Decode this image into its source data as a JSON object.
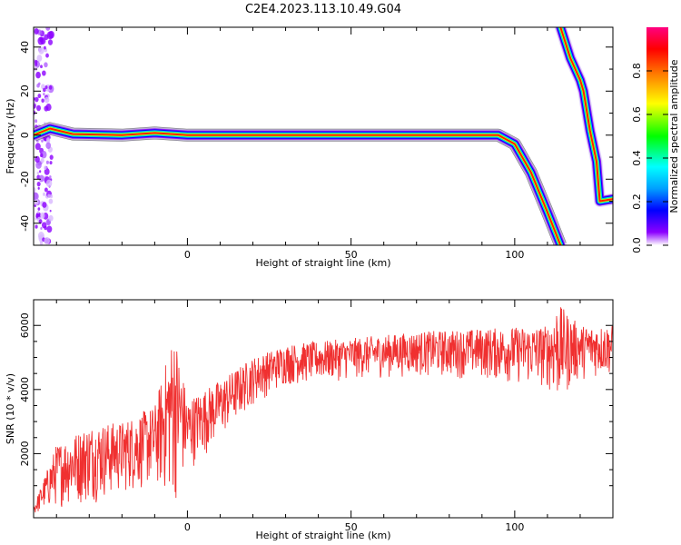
{
  "title": "C2E4.2023.113.10.49.G04",
  "chart_data": [
    {
      "type": "heatmap",
      "xlabel": "Height of straight line (km)",
      "ylabel": "Frequency (Hz)",
      "xlim": [
        -47,
        130
      ],
      "ylim": [
        -50,
        49
      ],
      "xticks": [
        0,
        50,
        100
      ],
      "yticks": [
        -40,
        -20,
        0,
        20,
        40
      ],
      "colorbar": {
        "label": "Normalized spectral amplitude",
        "range": [
          0,
          1
        ],
        "ticks": [
          "0.0",
          "0.2",
          "0.4",
          "0.6",
          "0.8"
        ],
        "colors": [
          "#ffffff",
          "#8c00ff",
          "#0000ff",
          "#00a0ff",
          "#00ffff",
          "#00ff00",
          "#ffff00",
          "#ff8000",
          "#ff0000",
          "#ff0080"
        ]
      },
      "ridge": [
        {
          "x": -47,
          "y": 0
        },
        {
          "x": -42,
          "y": 3
        },
        {
          "x": -35,
          "y": 0.5
        },
        {
          "x": -20,
          "y": 0
        },
        {
          "x": -10,
          "y": 1
        },
        {
          "x": 0,
          "y": 0
        },
        {
          "x": 95,
          "y": 0
        },
        {
          "x": 100,
          "y": -4
        },
        {
          "x": 105,
          "y": -17
        },
        {
          "x": 110,
          "y": -35
        },
        {
          "x": 114,
          "y": -50
        }
      ],
      "ridge2": [
        {
          "x": 114,
          "y": 49
        },
        {
          "x": 117,
          "y": 35
        },
        {
          "x": 120,
          "y": 25
        },
        {
          "x": 121,
          "y": 20
        },
        {
          "x": 123,
          "y": 2
        },
        {
          "x": 125,
          "y": -12
        },
        {
          "x": 126,
          "y": -30
        },
        {
          "x": 130,
          "y": -29
        }
      ]
    },
    {
      "type": "line",
      "xlabel": "Height of straight line (km)",
      "ylabel": "SNR (10 * v/v)",
      "xlim": [
        -47,
        130
      ],
      "ylim": [
        0,
        6800
      ],
      "xticks": [
        0,
        50,
        100
      ],
      "yticks": [
        2000,
        4000,
        6000
      ],
      "series": [
        {
          "color": "#f03030",
          "envelope": [
            {
              "x": -47,
              "lo": 80,
              "hi": 350
            },
            {
              "x": -40,
              "lo": 300,
              "hi": 2300
            },
            {
              "x": -30,
              "lo": 400,
              "hi": 2900
            },
            {
              "x": -20,
              "lo": 700,
              "hi": 3000
            },
            {
              "x": -10,
              "lo": 900,
              "hi": 3500
            },
            {
              "x": -4,
              "lo": 300,
              "hi": 5900
            },
            {
              "x": 0,
              "lo": 1400,
              "hi": 3700
            },
            {
              "x": 10,
              "lo": 2400,
              "hi": 4300
            },
            {
              "x": 20,
              "lo": 3500,
              "hi": 5000
            },
            {
              "x": 30,
              "lo": 4100,
              "hi": 5400
            },
            {
              "x": 50,
              "lo": 4300,
              "hi": 5600
            },
            {
              "x": 70,
              "lo": 4400,
              "hi": 5800
            },
            {
              "x": 90,
              "lo": 4300,
              "hi": 5900
            },
            {
              "x": 110,
              "lo": 4000,
              "hi": 6000
            },
            {
              "x": 113,
              "lo": 3400,
              "hi": 6700
            },
            {
              "x": 120,
              "lo": 4300,
              "hi": 6000
            },
            {
              "x": 130,
              "lo": 4400,
              "hi": 6000
            }
          ]
        }
      ]
    }
  ]
}
